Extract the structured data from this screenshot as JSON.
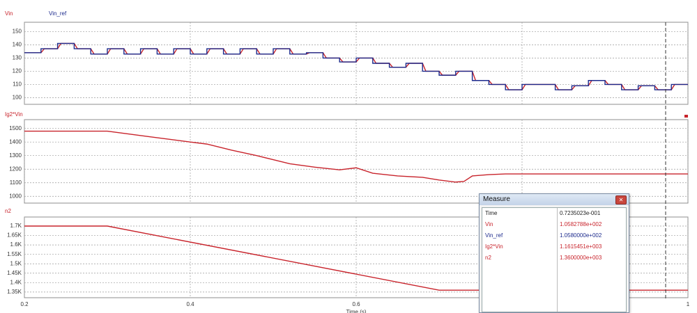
{
  "chart_data": [
    {
      "type": "line",
      "xlim": [
        0.2,
        1.0
      ],
      "xticks": [
        0.2,
        0.4,
        0.6,
        0.8,
        1.0
      ],
      "ylim": [
        95,
        157
      ],
      "yticks": [
        100,
        110,
        120,
        130,
        140,
        150
      ],
      "grid": true,
      "series": [
        {
          "name": "Vin",
          "color": "#c8232b",
          "x": [
            0.2,
            0.22,
            0.224,
            0.24,
            0.244,
            0.26,
            0.264,
            0.28,
            0.284,
            0.3,
            0.304,
            0.32,
            0.324,
            0.34,
            0.344,
            0.36,
            0.364,
            0.38,
            0.384,
            0.4,
            0.404,
            0.42,
            0.424,
            0.44,
            0.444,
            0.46,
            0.464,
            0.48,
            0.484,
            0.5,
            0.504,
            0.52,
            0.524,
            0.54,
            0.544,
            0.56,
            0.564,
            0.58,
            0.584,
            0.6,
            0.604,
            0.62,
            0.624,
            0.64,
            0.644,
            0.66,
            0.664,
            0.68,
            0.684,
            0.7,
            0.704,
            0.72,
            0.724,
            0.74,
            0.744,
            0.76,
            0.764,
            0.78,
            0.784,
            0.8,
            0.804,
            0.82,
            0.824,
            0.84,
            0.844,
            0.86,
            0.864,
            0.88,
            0.884,
            0.9,
            0.904,
            0.92,
            0.924,
            0.94,
            0.944,
            0.96,
            0.964,
            0.98,
            0.984,
            1.0
          ],
          "values": [
            134,
            134,
            137,
            137,
            141,
            141,
            137,
            137,
            133,
            133,
            137,
            137,
            133,
            133,
            137,
            137,
            133,
            133,
            137,
            137,
            133,
            133,
            137,
            137,
            133,
            133,
            137,
            137,
            133,
            133,
            137,
            137,
            133,
            133,
            134,
            134,
            130,
            130,
            127,
            127,
            130,
            130,
            126,
            126,
            123,
            123,
            126,
            126,
            120,
            120,
            117,
            117,
            120,
            120,
            113,
            113,
            110,
            110,
            106,
            106,
            110,
            110,
            110,
            110,
            106,
            106,
            109,
            109,
            113,
            113,
            110,
            110,
            106,
            106,
            109,
            109,
            106,
            106,
            110,
            110
          ]
        },
        {
          "name": "Vin_ref",
          "color": "#1c2a8c",
          "x": [
            0.2,
            0.22,
            0.22,
            0.24,
            0.24,
            0.26,
            0.26,
            0.28,
            0.28,
            0.3,
            0.3,
            0.32,
            0.32,
            0.34,
            0.34,
            0.36,
            0.36,
            0.38,
            0.38,
            0.4,
            0.4,
            0.42,
            0.42,
            0.44,
            0.44,
            0.46,
            0.46,
            0.48,
            0.48,
            0.5,
            0.5,
            0.52,
            0.52,
            0.54,
            0.54,
            0.56,
            0.56,
            0.58,
            0.58,
            0.6,
            0.6,
            0.62,
            0.62,
            0.64,
            0.64,
            0.66,
            0.66,
            0.68,
            0.68,
            0.7,
            0.7,
            0.72,
            0.72,
            0.74,
            0.74,
            0.76,
            0.76,
            0.78,
            0.78,
            0.8,
            0.8,
            0.82,
            0.82,
            0.84,
            0.84,
            0.86,
            0.86,
            0.88,
            0.88,
            0.9,
            0.9,
            0.92,
            0.92,
            0.94,
            0.94,
            0.96,
            0.96,
            0.98,
            0.98,
            1.0
          ],
          "values": [
            134,
            134,
            137,
            137,
            141,
            141,
            137,
            137,
            133,
            133,
            137,
            137,
            133,
            133,
            137,
            137,
            133,
            133,
            137,
            137,
            133,
            133,
            137,
            137,
            133,
            133,
            137,
            137,
            133,
            133,
            137,
            137,
            133,
            133,
            134,
            134,
            130,
            130,
            127,
            127,
            130,
            130,
            126,
            126,
            123,
            123,
            126,
            126,
            120,
            120,
            117,
            117,
            120,
            120,
            113,
            113,
            110,
            110,
            106,
            106,
            110,
            110,
            110,
            110,
            106,
            106,
            109,
            109,
            113,
            113,
            110,
            110,
            106,
            106,
            109,
            109,
            106,
            106,
            110,
            110
          ]
        }
      ]
    },
    {
      "type": "line",
      "xlim": [
        0.2,
        1.0
      ],
      "xticks": [
        0.2,
        0.4,
        0.6,
        0.8,
        1.0
      ],
      "ylim": [
        950,
        1565
      ],
      "yticks": [
        1000,
        1100,
        1200,
        1300,
        1400,
        1500
      ],
      "grid": true,
      "series": [
        {
          "name": "Ig2*Vin",
          "color": "#c8232b",
          "x": [
            0.2,
            0.3,
            0.35,
            0.4,
            0.42,
            0.45,
            0.48,
            0.5,
            0.52,
            0.55,
            0.58,
            0.6,
            0.62,
            0.65,
            0.68,
            0.7,
            0.72,
            0.73,
            0.74,
            0.76,
            0.78,
            1.0
          ],
          "values": [
            1480,
            1480,
            1440,
            1400,
            1385,
            1340,
            1300,
            1270,
            1240,
            1215,
            1195,
            1210,
            1170,
            1150,
            1140,
            1120,
            1105,
            1110,
            1150,
            1160,
            1165,
            1165
          ]
        }
      ]
    },
    {
      "type": "line",
      "xlabel": "Time (s)",
      "xlim": [
        0.2,
        1.0
      ],
      "xticks": [
        0.2,
        0.4,
        0.6,
        0.8,
        1
      ],
      "ylim": [
        1320,
        1748
      ],
      "yticks": [
        {
          "value": 1350,
          "label": "1.35K"
        },
        {
          "value": 1400,
          "label": "1.4K"
        },
        {
          "value": 1450,
          "label": "1.45K"
        },
        {
          "value": 1500,
          "label": "1.5K"
        },
        {
          "value": 1550,
          "label": "1.55K"
        },
        {
          "value": 1600,
          "label": "1.6K"
        },
        {
          "value": 1650,
          "label": "1.65K"
        },
        {
          "value": 1700,
          "label": "1.7K"
        }
      ],
      "grid": true,
      "series": [
        {
          "name": "n2",
          "color": "#c8232b",
          "x": [
            0.2,
            0.3,
            0.7,
            1.0
          ],
          "values": [
            1700,
            1700,
            1360,
            1360
          ]
        }
      ]
    }
  ],
  "measure": {
    "title": "Measure",
    "rows": [
      [
        "Time",
        "0.7235023e-001"
      ],
      [
        "Vin",
        "1.0582788e+002"
      ],
      [
        "Vin_ref",
        "1.0580000e+002"
      ],
      [
        "Ig2*Vin",
        "1.1615451e+003"
      ],
      [
        "n2",
        "1.3600000e+003"
      ]
    ],
    "row_colors": [
      "#222222",
      "#c8232b",
      "#1c2a8c",
      "#c8232b",
      "#c8232b"
    ]
  }
}
